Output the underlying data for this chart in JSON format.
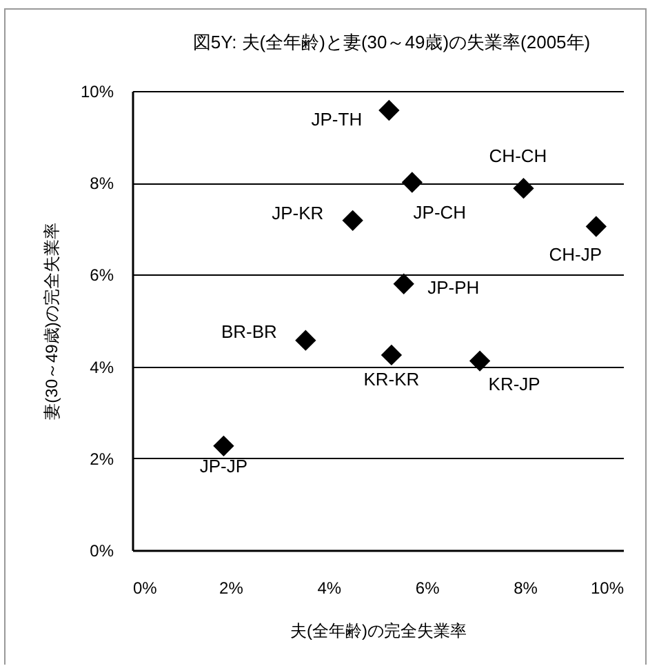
{
  "chart_data": {
    "type": "scatter",
    "title": "図5Y: 夫(全年齢)と妻(30～49歳)の失業率(2005年)",
    "xlabel": "夫(全年齢)の完全失業率",
    "ylabel": "妻(30～49歳)の完全失業率",
    "x": [
      5.23,
      5.7,
      7.97,
      4.49,
      9.45,
      5.53,
      3.53,
      5.28,
      7.08,
      1.86
    ],
    "series": [
      {
        "color": "#000000",
        "values": [
          9.58,
          8.01,
          7.88,
          7.18,
          7.05,
          5.8,
          4.57,
          4.25,
          4.12,
          2.27
        ]
      }
    ],
    "annotations": [
      {
        "text": "JP-TH",
        "x": 5.23,
        "y": 9.58
      },
      {
        "text": "JP-CH",
        "x": 5.7,
        "y": 8.01
      },
      {
        "text": "CH-CH",
        "x": 7.97,
        "y": 7.88
      },
      {
        "text": "JP-KR",
        "x": 4.49,
        "y": 7.18
      },
      {
        "text": "CH-JP",
        "x": 9.45,
        "y": 7.05
      },
      {
        "text": "JP-PH",
        "x": 5.53,
        "y": 5.8
      },
      {
        "text": "BR-BR",
        "x": 3.53,
        "y": 4.57
      },
      {
        "text": "KR-KR",
        "x": 5.28,
        "y": 4.25
      },
      {
        "text": "KR-JP",
        "x": 7.08,
        "y": 4.12
      },
      {
        "text": "JP-JP",
        "x": 1.86,
        "y": 2.27
      }
    ],
    "xlim": [
      0,
      10
    ],
    "ylim": [
      0,
      10
    ],
    "xticks": [
      {
        "value": 0,
        "label": "0%"
      },
      {
        "value": 2,
        "label": "2%"
      },
      {
        "value": 4,
        "label": "4%"
      },
      {
        "value": 6,
        "label": "6%"
      },
      {
        "value": 8,
        "label": "8%"
      },
      {
        "value": 10,
        "label": "10%"
      }
    ],
    "yticks": [
      {
        "value": 0,
        "label": "0%"
      },
      {
        "value": 2,
        "label": "2%"
      },
      {
        "value": 4,
        "label": "4%"
      },
      {
        "value": 6,
        "label": "6%"
      },
      {
        "value": 8,
        "label": "8%"
      },
      {
        "value": 10,
        "label": "10%"
      }
    ],
    "grid": "y",
    "marker": "diamond"
  }
}
